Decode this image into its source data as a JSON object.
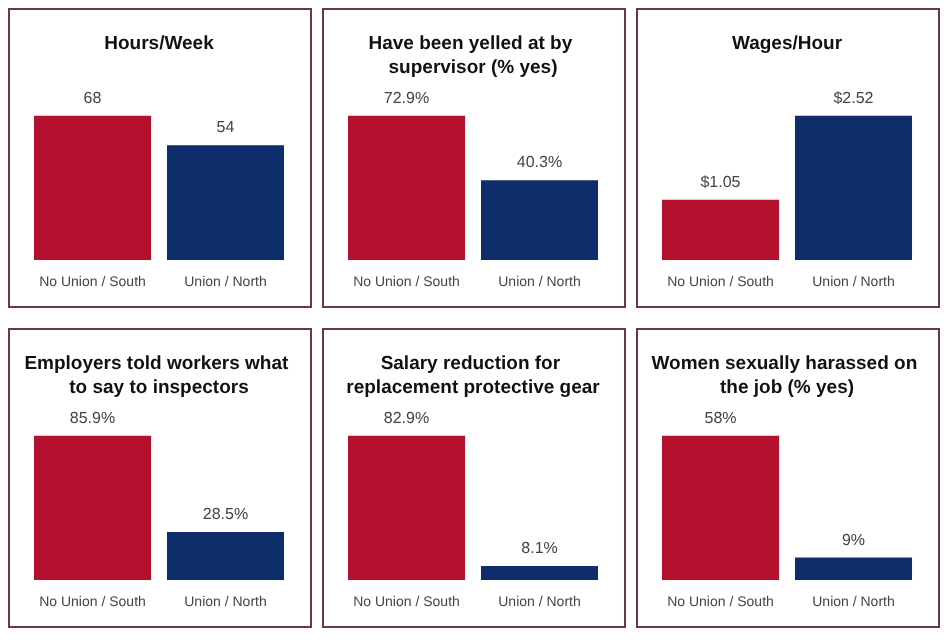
{
  "chart_data": [
    {
      "type": "bar",
      "title": "Hours/Week",
      "categories": [
        "No Union / South",
        "Union / North"
      ],
      "values": [
        68,
        54
      ],
      "colors": [
        "#b5102e",
        "#0d2d6b"
      ],
      "value_labels": [
        "68",
        "54"
      ],
      "tick_labels": "x"
    },
    {
      "type": "bar",
      "title": "Have been yelled at by supervisor (% yes)",
      "categories": [
        "No Union / South",
        "Union / North"
      ],
      "values": [
        72.9,
        40.3
      ],
      "colors": [
        "#b5102e",
        "#0d2d6b"
      ],
      "value_labels": [
        "72.9%",
        "40.3%"
      ],
      "tick_labels": "x"
    },
    {
      "type": "bar",
      "title": "Wages/Hour",
      "categories": [
        "No Union / South",
        "Union / North"
      ],
      "values": [
        1.05,
        2.52
      ],
      "colors": [
        "#b5102e",
        "#0d2d6b"
      ],
      "value_labels": [
        "$1.05",
        "$2.52"
      ],
      "tick_labels": "x"
    },
    {
      "type": "bar",
      "title": "Employers told workers what to say to inspectors",
      "categories": [
        "No Union / South",
        "Union / North"
      ],
      "values": [
        85.9,
        28.5
      ],
      "colors": [
        "#b5102e",
        "#0d2d6b"
      ],
      "value_labels": [
        "85.9%",
        "28.5%"
      ],
      "tick_labels": "x"
    },
    {
      "type": "bar",
      "title": "Salary reduction for replacement protective gear",
      "categories": [
        "No Union / South",
        "Union / North"
      ],
      "values": [
        82.9,
        8.1
      ],
      "colors": [
        "#b5102e",
        "#0d2d6b"
      ],
      "value_labels": [
        "82.9%",
        "8.1%"
      ],
      "tick_labels": "x"
    },
    {
      "type": "bar",
      "title": "Women sexually harassed on the job (% yes)",
      "categories": [
        "No Union / South",
        "Union / North"
      ],
      "values": [
        58,
        9
      ],
      "colors": [
        "#b5102e",
        "#0d2d6b"
      ],
      "value_labels": [
        "58%",
        "9%"
      ],
      "tick_labels": "x"
    }
  ]
}
